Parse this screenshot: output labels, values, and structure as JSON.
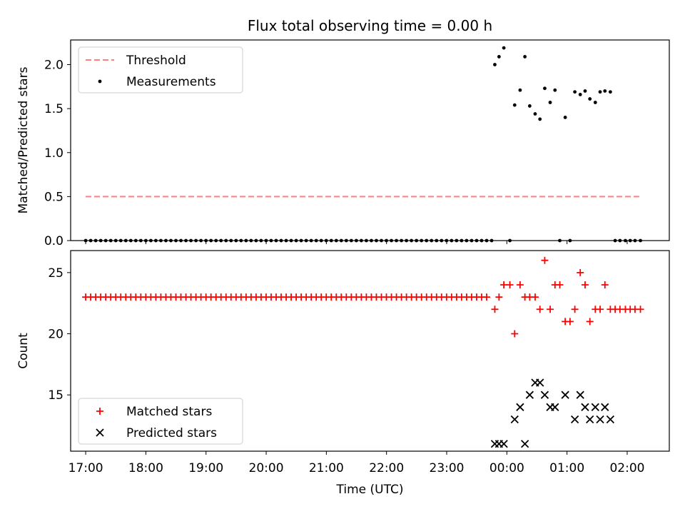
{
  "chart_data": [
    {
      "type": "scatter",
      "title": "Flux total observing time = 0.00 h",
      "xlabel": "",
      "ylabel": "Matched/Predicted stars",
      "ylim": [
        0,
        2.28
      ],
      "yticks": [
        "0.0",
        "0.5",
        "1.0",
        "1.5",
        "2.0"
      ],
      "xlim": [
        16.75,
        26.7
      ],
      "xticks": [
        "17:00",
        "18:00",
        "19:00",
        "20:00",
        "21:00",
        "22:00",
        "23:00",
        "00:00",
        "01:00",
        "02:00"
      ],
      "grid": false,
      "legend": {
        "placement": "top-left",
        "entries": [
          {
            "label": "Threshold",
            "style": "dashed-line",
            "color": "#ff7f7f"
          },
          {
            "label": "Measurements",
            "style": "dot",
            "color": "#000000"
          }
        ]
      },
      "series": [
        {
          "name": "Threshold",
          "kind": "line",
          "color": "#ff7f7f",
          "points": [
            [
              17.0,
              0.5
            ],
            [
              26.2,
              0.5
            ]
          ]
        },
        {
          "name": "Measurements",
          "kind": "scatter",
          "marker": "dot",
          "color": "#000000",
          "zero_range": {
            "start": 17.0,
            "end": 23.75,
            "step": 0.0833,
            "value": 0
          },
          "points": [
            [
              23.8,
              2.0
            ],
            [
              23.87,
              2.09
            ],
            [
              23.95,
              2.19
            ],
            [
              24.05,
              0.0
            ],
            [
              24.13,
              1.54
            ],
            [
              24.22,
              1.71
            ],
            [
              24.3,
              2.09
            ],
            [
              24.38,
              1.53
            ],
            [
              24.47,
              1.44
            ],
            [
              24.55,
              1.38
            ],
            [
              24.63,
              1.73
            ],
            [
              24.72,
              1.57
            ],
            [
              24.8,
              1.71
            ],
            [
              24.88,
              0.0
            ],
            [
              24.97,
              1.4
            ],
            [
              25.05,
              0.0
            ],
            [
              25.13,
              1.69
            ],
            [
              25.22,
              1.66
            ],
            [
              25.3,
              1.7
            ],
            [
              25.38,
              1.61
            ],
            [
              25.47,
              1.57
            ],
            [
              25.55,
              1.69
            ],
            [
              25.63,
              1.7
            ],
            [
              25.72,
              1.69
            ],
            [
              25.8,
              0.0
            ],
            [
              25.88,
              0.0
            ],
            [
              25.97,
              0.0
            ],
            [
              26.05,
              0.0
            ],
            [
              26.13,
              0.0
            ],
            [
              26.22,
              0.0
            ]
          ]
        }
      ]
    },
    {
      "type": "scatter",
      "title": "",
      "xlabel": "Time (UTC)",
      "ylabel": "Count",
      "ylim": [
        10.4,
        26.8
      ],
      "yticks": [
        "15",
        "20",
        "25"
      ],
      "xlim": [
        16.75,
        26.7
      ],
      "xticks": [
        "17:00",
        "18:00",
        "19:00",
        "20:00",
        "21:00",
        "22:00",
        "23:00",
        "00:00",
        "01:00",
        "02:00"
      ],
      "grid": false,
      "legend": {
        "placement": "bottom-left",
        "entries": [
          {
            "label": "Matched stars",
            "style": "plus",
            "color": "#ff0000"
          },
          {
            "label": "Predicted stars",
            "style": "x",
            "color": "#000000"
          }
        ]
      },
      "series": [
        {
          "name": "Matched stars",
          "kind": "scatter",
          "marker": "plus",
          "color": "#ff0000",
          "constant_range": {
            "start": 17.0,
            "end": 23.72,
            "step": 0.0833,
            "value": 23
          },
          "points": [
            [
              23.8,
              22
            ],
            [
              23.87,
              23
            ],
            [
              23.95,
              24
            ],
            [
              24.05,
              24
            ],
            [
              24.13,
              20
            ],
            [
              24.22,
              24
            ],
            [
              24.3,
              23
            ],
            [
              24.38,
              23
            ],
            [
              24.47,
              23
            ],
            [
              24.55,
              22
            ],
            [
              24.63,
              26
            ],
            [
              24.72,
              22
            ],
            [
              24.8,
              24
            ],
            [
              24.88,
              24
            ],
            [
              24.97,
              21
            ],
            [
              25.05,
              21
            ],
            [
              25.13,
              22
            ],
            [
              25.22,
              25
            ],
            [
              25.3,
              24
            ],
            [
              25.38,
              21
            ],
            [
              25.47,
              22
            ],
            [
              25.55,
              22
            ],
            [
              25.63,
              24
            ],
            [
              25.72,
              22
            ],
            [
              25.8,
              22
            ],
            [
              25.88,
              22
            ],
            [
              25.97,
              22
            ],
            [
              26.05,
              22
            ],
            [
              26.13,
              22
            ],
            [
              26.22,
              22
            ]
          ]
        },
        {
          "name": "Predicted stars",
          "kind": "scatter",
          "marker": "x",
          "color": "#000000",
          "points": [
            [
              23.8,
              11
            ],
            [
              23.87,
              11
            ],
            [
              23.95,
              11
            ],
            [
              24.13,
              13
            ],
            [
              24.22,
              14
            ],
            [
              24.3,
              11
            ],
            [
              24.38,
              15
            ],
            [
              24.47,
              16
            ],
            [
              24.55,
              16
            ],
            [
              24.63,
              15
            ],
            [
              24.72,
              14
            ],
            [
              24.8,
              14
            ],
            [
              24.97,
              15
            ],
            [
              25.13,
              13
            ],
            [
              25.22,
              15
            ],
            [
              25.3,
              14
            ],
            [
              25.38,
              13
            ],
            [
              25.47,
              14
            ],
            [
              25.55,
              13
            ],
            [
              25.63,
              14
            ],
            [
              25.72,
              13
            ]
          ]
        }
      ]
    }
  ]
}
